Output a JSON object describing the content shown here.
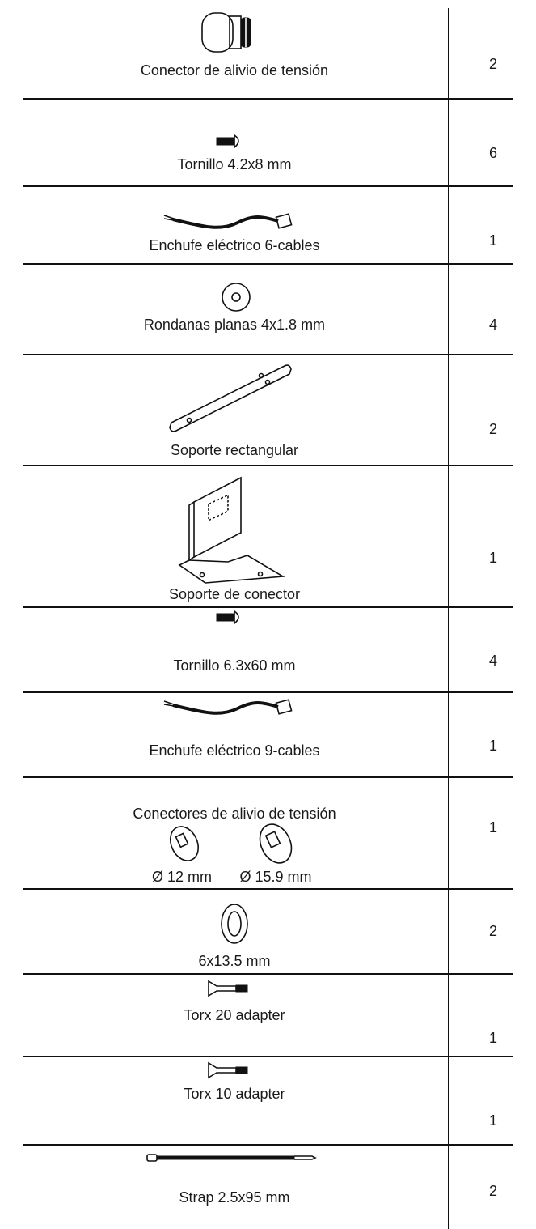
{
  "rows": [
    {
      "name": "Conector de alivio de tensión",
      "quantity": 2
    },
    {
      "name": "Tornillo 4.2x8 mm",
      "quantity": 6
    },
    {
      "name": "Enchufe eléctrico 6-cables",
      "quantity": 1
    },
    {
      "name": "Rondanas planas 4x1.8 mm",
      "quantity": 4
    },
    {
      "name": "Soporte rectangular",
      "quantity": 2
    },
    {
      "name": "Soporte de conector",
      "quantity": 1
    },
    {
      "name": "Tornillo 6.3x60 mm",
      "quantity": 4
    },
    {
      "name": "Enchufe eléctrico 9-cables",
      "quantity": 1
    },
    {
      "name": "Conectores de alivio de tensión",
      "sizes": [
        "Ø 12 mm",
        "Ø 15.9 mm"
      ],
      "quantity": 1
    },
    {
      "name": "6x13.5 mm",
      "quantity": 2
    },
    {
      "name": "Torx 20 adapter",
      "quantity": 1
    },
    {
      "name": "Torx 10 adapter",
      "quantity": 1
    },
    {
      "name": "Strap 2.5x95 mm",
      "quantity": 2
    }
  ]
}
